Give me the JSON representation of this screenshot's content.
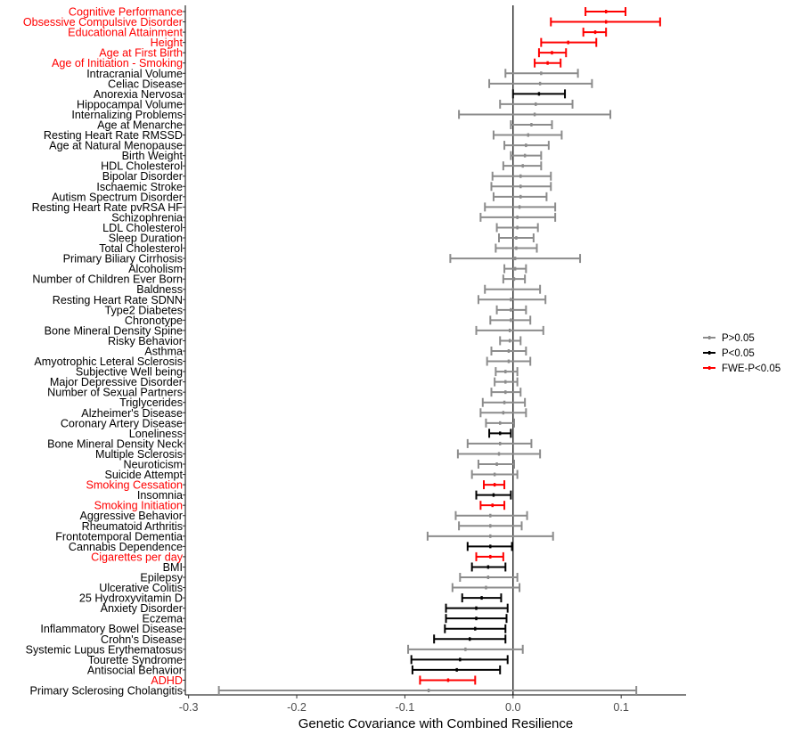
{
  "chart_data": {
    "type": "forest",
    "title": "",
    "xlabel": "Genetic Covariance with Combined Resilience",
    "ylabel": "",
    "xlim": [
      -0.303,
      0.16
    ],
    "xticks": [
      -0.3,
      -0.2,
      -0.1,
      0.0,
      0.1
    ],
    "xtick_labels": [
      "-0.3",
      "-0.2",
      "-0.1",
      "0.0",
      "0.1"
    ],
    "reference_line": 0.0,
    "grid": false,
    "legend_position": "right",
    "legend": [
      {
        "key": "ns",
        "label": "P>0.05",
        "color": "#8c8c8c"
      },
      {
        "key": "nominal",
        "label": "P<0.05",
        "color": "#000000"
      },
      {
        "key": "fwe",
        "label": "FWE-P<0.05",
        "color": "#ff0000"
      }
    ],
    "rows": [
      {
        "label": "Cognitive Performance",
        "est": 0.086,
        "lo": 0.067,
        "hi": 0.104,
        "sig": "fwe"
      },
      {
        "label": "Obsessive Compulsive Disorder",
        "est": 0.086,
        "lo": 0.035,
        "hi": 0.136,
        "sig": "fwe"
      },
      {
        "label": "Educational Attainment",
        "est": 0.076,
        "lo": 0.065,
        "hi": 0.086,
        "sig": "fwe"
      },
      {
        "label": "Height",
        "est": 0.051,
        "lo": 0.026,
        "hi": 0.077,
        "sig": "fwe"
      },
      {
        "label": "Age at First Birth",
        "est": 0.036,
        "lo": 0.024,
        "hi": 0.049,
        "sig": "fwe"
      },
      {
        "label": "Age of Initiation - Smoking",
        "est": 0.032,
        "lo": 0.02,
        "hi": 0.044,
        "sig": "fwe"
      },
      {
        "label": "Intracranial Volume",
        "est": 0.026,
        "lo": -0.007,
        "hi": 0.06,
        "sig": "ns"
      },
      {
        "label": "Celiac Disease",
        "est": 0.025,
        "lo": -0.022,
        "hi": 0.073,
        "sig": "ns"
      },
      {
        "label": "Anorexia Nervosa",
        "est": 0.024,
        "lo": 0.0,
        "hi": 0.048,
        "sig": "nominal"
      },
      {
        "label": "Hippocampal Volume",
        "est": 0.021,
        "lo": -0.012,
        "hi": 0.055,
        "sig": "ns"
      },
      {
        "label": "Internalizing Problems",
        "est": 0.02,
        "lo": -0.05,
        "hi": 0.09,
        "sig": "ns"
      },
      {
        "label": "Age at Menarche",
        "est": 0.017,
        "lo": -0.002,
        "hi": 0.036,
        "sig": "ns"
      },
      {
        "label": "Resting Heart Rate RMSSD",
        "est": 0.014,
        "lo": -0.018,
        "hi": 0.045,
        "sig": "ns"
      },
      {
        "label": "Age at Natural Menopause",
        "est": 0.012,
        "lo": -0.008,
        "hi": 0.033,
        "sig": "ns"
      },
      {
        "label": "Birth Weight",
        "est": 0.011,
        "lo": -0.002,
        "hi": 0.026,
        "sig": "ns"
      },
      {
        "label": "HDL Cholesterol",
        "est": 0.009,
        "lo": -0.009,
        "hi": 0.026,
        "sig": "ns"
      },
      {
        "label": "Bipolar Disorder",
        "est": 0.007,
        "lo": -0.019,
        "hi": 0.035,
        "sig": "ns"
      },
      {
        "label": "Ischaemic Stroke",
        "est": 0.007,
        "lo": -0.02,
        "hi": 0.035,
        "sig": "ns"
      },
      {
        "label": "Autism Spectrum Disorder",
        "est": 0.007,
        "lo": -0.018,
        "hi": 0.031,
        "sig": "ns"
      },
      {
        "label": "Resting Heart Rate pvRSA HF",
        "est": 0.006,
        "lo": -0.026,
        "hi": 0.039,
        "sig": "ns"
      },
      {
        "label": "Schizophrenia",
        "est": 0.004,
        "lo": -0.03,
        "hi": 0.039,
        "sig": "ns"
      },
      {
        "label": "LDL Cholesterol",
        "est": 0.004,
        "lo": -0.015,
        "hi": 0.023,
        "sig": "ns"
      },
      {
        "label": "Sleep Duration",
        "est": 0.003,
        "lo": -0.013,
        "hi": 0.019,
        "sig": "ns"
      },
      {
        "label": "Total Cholesterol",
        "est": 0.003,
        "lo": -0.016,
        "hi": 0.022,
        "sig": "ns"
      },
      {
        "label": "Primary Biliary Cirrhosis",
        "est": 0.002,
        "lo": -0.058,
        "hi": 0.062,
        "sig": "ns"
      },
      {
        "label": "Alcoholism",
        "est": 0.002,
        "lo": -0.008,
        "hi": 0.012,
        "sig": "ns"
      },
      {
        "label": "Number of Children Ever Born",
        "est": 0.001,
        "lo": -0.009,
        "hi": 0.011,
        "sig": "ns"
      },
      {
        "label": "Baldness",
        "est": 0.0,
        "lo": -0.026,
        "hi": 0.025,
        "sig": "ns"
      },
      {
        "label": "Resting Heart Rate SDNN",
        "est": -0.002,
        "lo": -0.032,
        "hi": 0.03,
        "sig": "ns"
      },
      {
        "label": "Type2 Diabetes",
        "est": -0.002,
        "lo": -0.015,
        "hi": 0.012,
        "sig": "ns"
      },
      {
        "label": "Chronotype",
        "est": -0.002,
        "lo": -0.021,
        "hi": 0.016,
        "sig": "ns"
      },
      {
        "label": "Bone Mineral Density Spine",
        "est": -0.003,
        "lo": -0.034,
        "hi": 0.028,
        "sig": "ns"
      },
      {
        "label": "Risky Behavior",
        "est": -0.003,
        "lo": -0.012,
        "hi": 0.007,
        "sig": "ns"
      },
      {
        "label": "Asthma",
        "est": -0.004,
        "lo": -0.02,
        "hi": 0.012,
        "sig": "ns"
      },
      {
        "label": "Amyotrophic Leteral Sclerosis",
        "est": -0.004,
        "lo": -0.024,
        "hi": 0.016,
        "sig": "ns"
      },
      {
        "label": "Subjective Well being",
        "est": -0.007,
        "lo": -0.016,
        "hi": 0.004,
        "sig": "ns"
      },
      {
        "label": "Major Depressive Disorder",
        "est": -0.007,
        "lo": -0.017,
        "hi": 0.004,
        "sig": "ns"
      },
      {
        "label": "Number of Sexual Partners",
        "est": -0.007,
        "lo": -0.02,
        "hi": 0.007,
        "sig": "ns"
      },
      {
        "label": "Triglycerides",
        "est": -0.008,
        "lo": -0.028,
        "hi": 0.011,
        "sig": "ns"
      },
      {
        "label": "Alzheimer's Disease",
        "est": -0.009,
        "lo": -0.03,
        "hi": 0.012,
        "sig": "ns"
      },
      {
        "label": "Coronary Artery Disease",
        "est": -0.012,
        "lo": -0.025,
        "hi": 0.001,
        "sig": "ns"
      },
      {
        "label": "Loneliness",
        "est": -0.012,
        "lo": -0.022,
        "hi": -0.002,
        "sig": "nominal"
      },
      {
        "label": "Bone Mineral Density Neck",
        "est": -0.012,
        "lo": -0.042,
        "hi": 0.017,
        "sig": "ns"
      },
      {
        "label": "Multiple Sclerosis",
        "est": -0.013,
        "lo": -0.051,
        "hi": 0.025,
        "sig": "ns"
      },
      {
        "label": "Neuroticism",
        "est": -0.015,
        "lo": -0.032,
        "hi": 0.001,
        "sig": "ns"
      },
      {
        "label": "Suicide Attempt",
        "est": -0.017,
        "lo": -0.038,
        "hi": 0.004,
        "sig": "ns"
      },
      {
        "label": "Smoking Cessation",
        "est": -0.017,
        "lo": -0.027,
        "hi": -0.008,
        "sig": "fwe"
      },
      {
        "label": "Insomnia",
        "est": -0.018,
        "lo": -0.034,
        "hi": -0.002,
        "sig": "nominal"
      },
      {
        "label": "Smoking Initiation",
        "est": -0.019,
        "lo": -0.03,
        "hi": -0.008,
        "sig": "fwe"
      },
      {
        "label": "Aggressive Behavior",
        "est": -0.021,
        "lo": -0.053,
        "hi": 0.013,
        "sig": "ns"
      },
      {
        "label": "Rheumatoid Arthritis",
        "est": -0.021,
        "lo": -0.05,
        "hi": 0.008,
        "sig": "ns"
      },
      {
        "label": "Frontotemporal Dementia",
        "est": -0.021,
        "lo": -0.079,
        "hi": 0.037,
        "sig": "ns"
      },
      {
        "label": "Cannabis Dependence",
        "est": -0.021,
        "lo": -0.042,
        "hi": -0.001,
        "sig": "nominal"
      },
      {
        "label": "Cigarettes per day",
        "est": -0.021,
        "lo": -0.034,
        "hi": -0.009,
        "sig": "fwe"
      },
      {
        "label": "BMI",
        "est": -0.023,
        "lo": -0.038,
        "hi": -0.007,
        "sig": "nominal"
      },
      {
        "label": "Epilepsy",
        "est": -0.023,
        "lo": -0.049,
        "hi": 0.004,
        "sig": "ns"
      },
      {
        "label": "Ulcerative Colitis",
        "est": -0.025,
        "lo": -0.056,
        "hi": 0.006,
        "sig": "ns"
      },
      {
        "label": "25 Hydroxyvitamin D",
        "est": -0.029,
        "lo": -0.047,
        "hi": -0.011,
        "sig": "nominal"
      },
      {
        "label": "Anxiety Disorder",
        "est": -0.034,
        "lo": -0.062,
        "hi": -0.005,
        "sig": "nominal"
      },
      {
        "label": "Eczema",
        "est": -0.034,
        "lo": -0.062,
        "hi": -0.006,
        "sig": "nominal"
      },
      {
        "label": "Inflammatory Bowel Disease",
        "est": -0.035,
        "lo": -0.063,
        "hi": -0.007,
        "sig": "nominal"
      },
      {
        "label": "Crohn's Disease",
        "est": -0.04,
        "lo": -0.073,
        "hi": -0.007,
        "sig": "nominal"
      },
      {
        "label": "Systemic Lupus Erythematosus",
        "est": -0.044,
        "lo": -0.097,
        "hi": 0.009,
        "sig": "ns"
      },
      {
        "label": "Tourette Syndrome",
        "est": -0.049,
        "lo": -0.094,
        "hi": -0.005,
        "sig": "nominal"
      },
      {
        "label": "Antisocial Behavior",
        "est": -0.052,
        "lo": -0.093,
        "hi": -0.012,
        "sig": "nominal"
      },
      {
        "label": "ADHD",
        "est": -0.06,
        "lo": -0.086,
        "hi": -0.035,
        "sig": "fwe"
      },
      {
        "label": "Primary Sclerosing Cholangitis",
        "est": -0.078,
        "lo": -0.272,
        "hi": 0.114,
        "sig": "ns"
      }
    ]
  }
}
